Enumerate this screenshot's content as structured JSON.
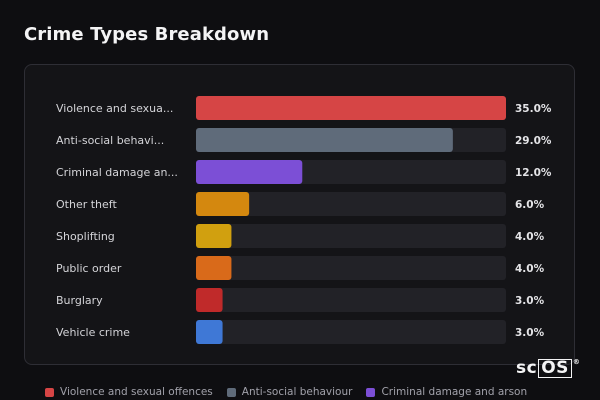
{
  "title": "Crime Types Breakdown",
  "logo": {
    "prefix": "sc",
    "boxed": "OS",
    "mark": "®"
  },
  "chart_data": {
    "type": "bar",
    "orientation": "horizontal",
    "title": "Crime Types Breakdown",
    "xlim": [
      0,
      35
    ],
    "grid": false,
    "legend_position": "bottom",
    "categories": [
      "Violence and sexua...",
      "Anti-social behavi...",
      "Criminal damage an...",
      "Other theft",
      "Shoplifting",
      "Public order",
      "Burglary",
      "Vehicle crime"
    ],
    "values": [
      35.0,
      29.0,
      12.0,
      6.0,
      4.0,
      4.0,
      3.0,
      3.0
    ],
    "value_labels": [
      "35.0%",
      "29.0%",
      "12.0%",
      "6.0%",
      "4.0%",
      "4.0%",
      "3.0%",
      "3.0%"
    ],
    "colors": [
      "#d64545",
      "#5f6b7a",
      "#7c4fd6",
      "#d4880f",
      "#d1a00f",
      "#d96a1a",
      "#c02a2a",
      "#3f78d6"
    ],
    "legend": [
      {
        "label": "Violence and sexual offences",
        "color": "#d64545"
      },
      {
        "label": "Anti-social behaviour",
        "color": "#5f6b7a"
      },
      {
        "label": "Criminal damage and arson",
        "color": "#7c4fd6"
      }
    ]
  }
}
